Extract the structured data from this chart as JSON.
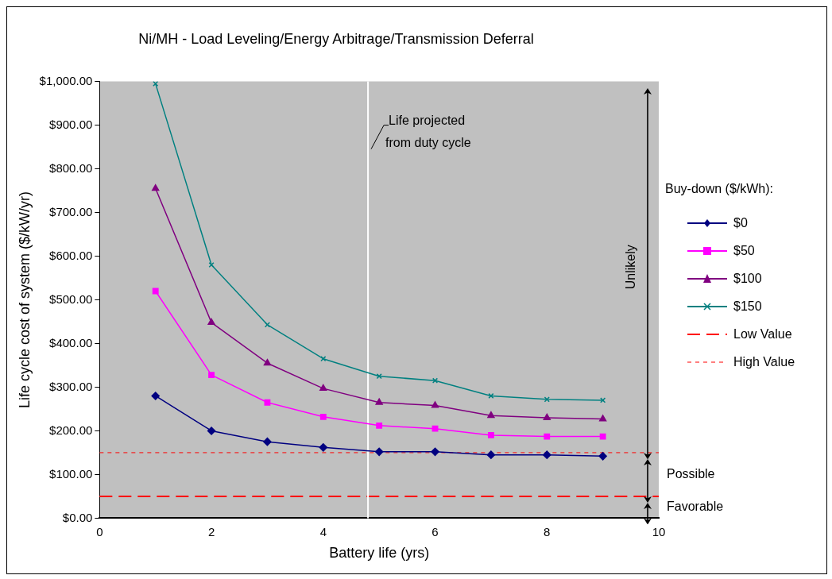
{
  "chart_data": {
    "type": "line",
    "title": "Ni/MH - Load Leveling/Energy Arbitrage/Transmission Deferral",
    "xlabel": "Battery life (yrs)",
    "ylabel": "Life cycle cost of system ($/kW/yr)",
    "legend_title": "Buy-down ($/kWh):",
    "x": [
      1,
      2,
      3,
      4,
      5,
      6,
      7,
      8,
      9
    ],
    "series": [
      {
        "name": "$0",
        "color": "#000080",
        "marker": "diamond",
        "values": [
          280,
          200,
          175,
          162,
          152,
          152,
          145,
          145,
          142
        ]
      },
      {
        "name": "$50",
        "color": "#ff00ff",
        "marker": "square",
        "values": [
          520,
          328,
          265,
          232,
          212,
          205,
          190,
          187,
          187
        ]
      },
      {
        "name": "$100",
        "color": "#800080",
        "marker": "triangle",
        "values": [
          755,
          448,
          355,
          297,
          265,
          258,
          235,
          230,
          227
        ]
      },
      {
        "name": "$150",
        "color": "#008080",
        "marker": "cross",
        "values": [
          995,
          580,
          443,
          365,
          325,
          315,
          280,
          272,
          270
        ]
      }
    ],
    "xlim": [
      0,
      10
    ],
    "xticks": [
      0,
      2,
      4,
      6,
      8,
      10
    ],
    "ylim": [
      0,
      1000
    ],
    "yticks": [
      {
        "value": 0,
        "label": "$0.00"
      },
      {
        "value": 100,
        "label": "$100.00"
      },
      {
        "value": 200,
        "label": "$200.00"
      },
      {
        "value": 300,
        "label": "$300.00"
      },
      {
        "value": 400,
        "label": "$400.00"
      },
      {
        "value": 500,
        "label": "$500.00"
      },
      {
        "value": 600,
        "label": "$600.00"
      },
      {
        "value": 700,
        "label": "$700.00"
      },
      {
        "value": 800,
        "label": "$800.00"
      },
      {
        "value": 900,
        "label": "$900.00"
      },
      {
        "value": 1000,
        "label": "$1,000.00"
      }
    ],
    "ref_lines": [
      {
        "axis": "y",
        "value": 50,
        "label": "Low Value",
        "color": "#ff0000",
        "line_style": "dashed"
      },
      {
        "axis": "y",
        "value": 150,
        "label": "High Value",
        "color": "#ff0000",
        "line_style": "dotted"
      },
      {
        "axis": "x",
        "value": 4.8,
        "label": "Life projected from duty cycle",
        "color": "#ffffff",
        "line_style": "solid"
      }
    ],
    "annotations": [
      "Unlikely",
      "Possible",
      "Favorable"
    ],
    "grid": false,
    "legend": "right"
  }
}
